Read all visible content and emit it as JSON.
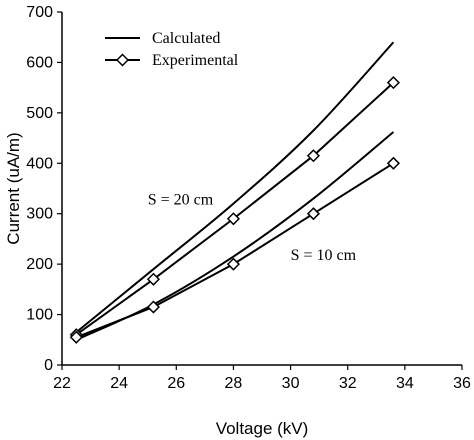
{
  "chart_data": {
    "type": "line",
    "title": "",
    "xlabel": "Voltage (kV)",
    "ylabel": "Current (uA/m)",
    "xlim": [
      22,
      36
    ],
    "ylim": [
      0,
      700
    ],
    "xticks": [
      22,
      24,
      26,
      28,
      30,
      32,
      34,
      36
    ],
    "yticks": [
      0,
      100,
      200,
      300,
      400,
      500,
      600,
      700
    ],
    "grid": false,
    "legend_position": "top-left",
    "legend": [
      {
        "label": "Calculated",
        "style": "line"
      },
      {
        "label": "Experimental",
        "style": "line-diamond"
      }
    ],
    "annotations": [
      {
        "text": "S = 20 cm",
        "x": 25.0,
        "y": 318
      },
      {
        "text": "S = 10 cm",
        "x": 30.0,
        "y": 208
      }
    ],
    "series": [
      {
        "style": "line",
        "group": "S = 20 cm",
        "x": [
          22.5,
          25.2,
          28.0,
          30.8,
          33.6
        ],
        "y": [
          65,
          190,
          320,
          465,
          640
        ]
      },
      {
        "style": "line-diamond",
        "group": "S = 20 cm",
        "x": [
          22.5,
          25.2,
          28.0,
          30.8,
          33.6
        ],
        "y": [
          60,
          170,
          290,
          415,
          560
        ]
      },
      {
        "style": "line",
        "group": "S = 10 cm",
        "x": [
          22.5,
          25.2,
          28.0,
          30.8,
          33.6
        ],
        "y": [
          50,
          120,
          215,
          330,
          462
        ]
      },
      {
        "style": "line-diamond",
        "group": "S = 10 cm",
        "x": [
          22.5,
          25.2,
          28.0,
          30.8,
          33.6
        ],
        "y": [
          55,
          115,
          200,
          300,
          400
        ]
      }
    ]
  }
}
